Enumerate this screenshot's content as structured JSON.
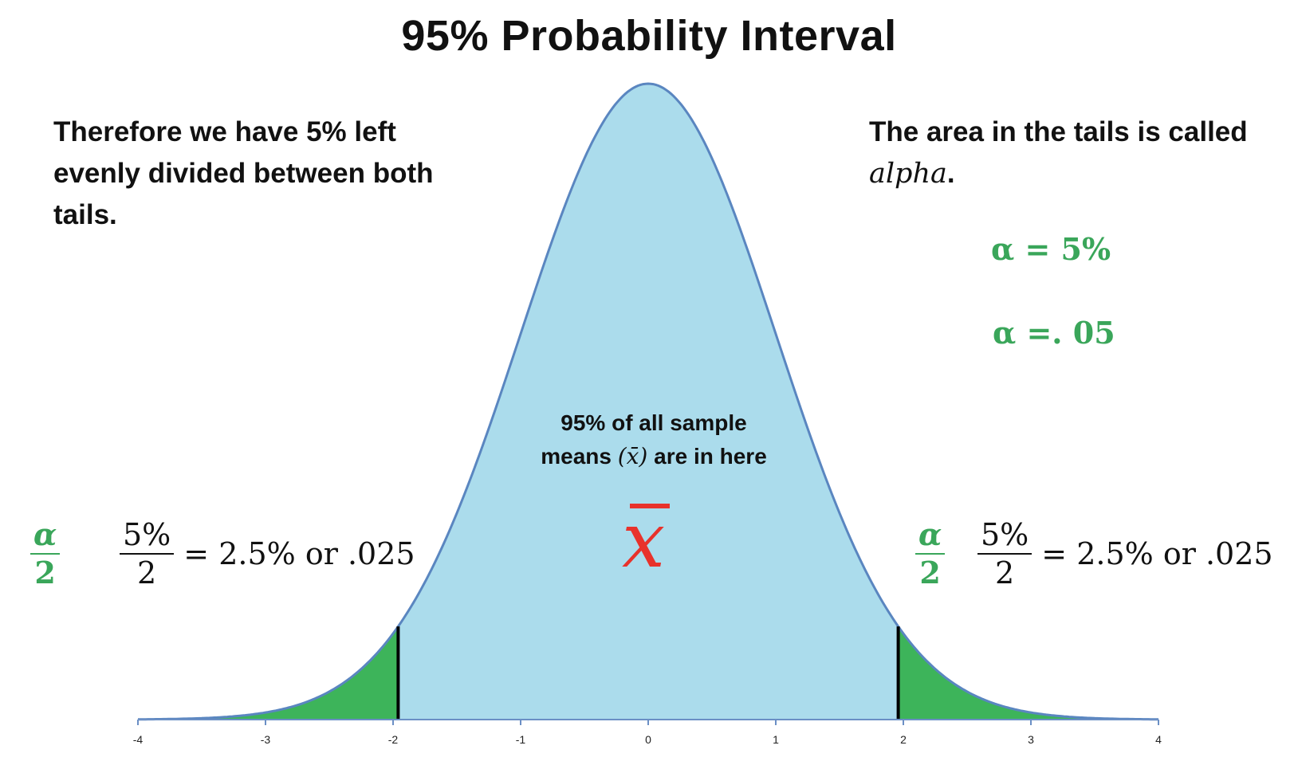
{
  "title": "95% Probability Interval",
  "left_note": "Therefore we have 5% left evenly divided between both tails.",
  "right_note": {
    "text": "The area in the tails is called ",
    "term": "alpha",
    "end": "."
  },
  "alpha_equations": [
    "α = 5%",
    "α =. 05"
  ],
  "alpha_fraction": {
    "num": "α",
    "den": "2"
  },
  "split_fraction": {
    "num": "5%",
    "den": "2",
    "rest": "= 2.5% or .025"
  },
  "center_note": {
    "line1": "95% of all sample",
    "line2_start": "means ",
    "symbol": "(x̄)",
    "line2_end": " are in here"
  },
  "mean_symbol": "x",
  "colors": {
    "curve_fill": "#abdcec",
    "curve_stroke": "#5a86c0",
    "tail_fill": "#3db45a",
    "accent_green": "#3aa65a",
    "mean_red": "#e8322b"
  },
  "chart_data": {
    "type": "area",
    "distribution": "standard normal",
    "xlim": [
      -4,
      4
    ],
    "x_ticks": [
      -4,
      -3,
      -2,
      -1,
      0,
      1,
      2,
      3,
      4
    ],
    "x_tick_labels": [
      "-4",
      "-3",
      "-2",
      "-1",
      "0",
      "1",
      "2",
      "3",
      "4"
    ],
    "critical_values": [
      -1.96,
      1.96
    ],
    "central_area": 0.95,
    "tail_area_each": 0.025,
    "grid": false,
    "title": "95% Probability Interval"
  }
}
